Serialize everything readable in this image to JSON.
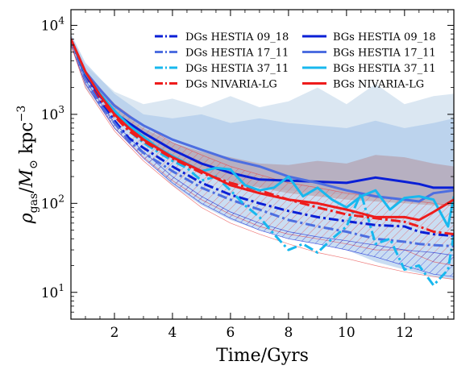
{
  "chart_data": {
    "type": "line",
    "xlabel": "Time/Gyrs",
    "ylabel": "ρ_gas/M_⊙ kpc^−3",
    "yscale": "log",
    "xlim": [
      0.5,
      13.7
    ],
    "ylim": [
      5,
      15000
    ],
    "xticks": [
      2,
      4,
      6,
      8,
      10,
      12
    ],
    "xtick_labels": [
      "2",
      "4",
      "6",
      "8",
      "10",
      "12"
    ],
    "yticks": [
      10,
      100,
      1000,
      10000
    ],
    "ytick_labels": [
      {
        "base": "10",
        "exp": "1"
      },
      {
        "base": "10",
        "exp": "2"
      },
      {
        "base": "10",
        "exp": "3"
      },
      {
        "base": "10",
        "exp": "4"
      }
    ],
    "legend_position": "top-right",
    "colors": {
      "hestia_09_18": "#0a1fd6",
      "hestia_17_11": "#4d6ee0",
      "hestia_37_11": "#18b8ee",
      "nivaria_lg": "#ee1c1c"
    },
    "series": [
      {
        "name": "DGs HESTIA 09_18",
        "color": "#0a1fd6",
        "style": "dashdot",
        "x": [
          0.5,
          1,
          1.5,
          2,
          2.5,
          3,
          4,
          5,
          6,
          7,
          8,
          9,
          10,
          11,
          12,
          12.5,
          13,
          13.7
        ],
        "y": [
          7000,
          2600,
          1400,
          850,
          540,
          420,
          260,
          170,
          125,
          100,
          82,
          70,
          63,
          57,
          55,
          48,
          45,
          43
        ]
      },
      {
        "name": "DGs HESTIA 17_11",
        "color": "#4d6ee0",
        "style": "dashdot",
        "x": [
          0.5,
          1,
          1.5,
          2,
          2.5,
          3,
          4,
          5,
          6,
          7,
          8,
          9,
          10,
          11,
          12,
          12.5,
          13,
          13.7
        ],
        "y": [
          7000,
          2500,
          1300,
          800,
          500,
          370,
          230,
          150,
          110,
          85,
          65,
          55,
          48,
          40,
          37,
          35,
          34,
          33
        ]
      },
      {
        "name": "DGs HESTIA 37_11",
        "color": "#18b8ee",
        "style": "dashdot",
        "x": [
          0.5,
          1,
          1.5,
          2,
          2.5,
          3,
          4,
          4.5,
          5,
          5.5,
          6,
          6.5,
          7,
          7.5,
          8,
          8.5,
          9,
          9.5,
          10,
          10.5,
          11,
          11.5,
          12,
          12.5,
          13,
          13.5,
          13.7
        ],
        "y": [
          7000,
          2800,
          1600,
          1000,
          650,
          480,
          300,
          250,
          180,
          200,
          140,
          95,
          70,
          45,
          30,
          35,
          28,
          40,
          55,
          130,
          35,
          40,
          18,
          20,
          12,
          18,
          45
        ]
      },
      {
        "name": "DGs NIVARIA-LG",
        "color": "#ee1c1c",
        "style": "dashdot",
        "x": [
          0.5,
          1,
          1.5,
          2,
          2.5,
          3,
          4,
          5,
          6,
          7,
          8,
          9,
          10,
          11,
          12,
          12.5,
          13,
          13.7
        ],
        "y": [
          7000,
          2800,
          1500,
          950,
          650,
          500,
          320,
          220,
          170,
          140,
          110,
          90,
          75,
          68,
          62,
          55,
          48,
          45
        ]
      },
      {
        "name": "BGs HESTIA 09_18",
        "color": "#0a1fd6",
        "style": "solid",
        "x": [
          0.5,
          1,
          1.5,
          2,
          2.5,
          3,
          4,
          5,
          6,
          7,
          8,
          9,
          10,
          11,
          12,
          12.5,
          13,
          13.7
        ],
        "y": [
          7000,
          2800,
          1600,
          1050,
          800,
          620,
          400,
          280,
          220,
          185,
          180,
          175,
          170,
          195,
          175,
          165,
          150,
          150
        ]
      },
      {
        "name": "BGs HESTIA 17_11",
        "color": "#4d6ee0",
        "style": "solid",
        "x": [
          0.5,
          1,
          1.5,
          2,
          2.5,
          3,
          4,
          5,
          6,
          7,
          8,
          9,
          10,
          11,
          12,
          12.5,
          13,
          13.7
        ],
        "y": [
          7000,
          3000,
          1900,
          1250,
          950,
          750,
          520,
          400,
          310,
          260,
          200,
          170,
          140,
          120,
          110,
          105,
          130,
          140
        ]
      },
      {
        "name": "BGs HESTIA 37_11",
        "color": "#18b8ee",
        "style": "solid",
        "x": [
          0.5,
          1,
          1.5,
          2,
          2.5,
          3,
          3.5,
          4,
          4.5,
          5,
          5.5,
          6,
          6.5,
          7,
          7.5,
          8,
          8.5,
          9,
          9.5,
          10,
          10.5,
          11,
          11.5,
          12,
          12.5,
          13,
          13.5,
          13.7
        ],
        "y": [
          7000,
          2900,
          1700,
          1100,
          750,
          560,
          420,
          340,
          280,
          230,
          250,
          240,
          160,
          140,
          150,
          200,
          120,
          150,
          110,
          90,
          120,
          140,
          85,
          115,
          120,
          110,
          55,
          120
        ]
      },
      {
        "name": "BGs NIVARIA-LG",
        "color": "#ee1c1c",
        "style": "solid",
        "x": [
          0.5,
          1,
          1.5,
          2,
          2.5,
          3,
          4,
          5,
          6,
          7,
          8,
          9,
          10,
          11,
          12,
          12.5,
          13,
          13.7
        ],
        "y": [
          7000,
          3000,
          1650,
          1000,
          700,
          520,
          330,
          230,
          160,
          130,
          110,
          100,
          85,
          70,
          70,
          65,
          80,
          110
        ]
      }
    ],
    "bands": [
      {
        "color": "#bed3e8",
        "opacity": 0.55,
        "hatch": false,
        "x": [
          0.5,
          1,
          2,
          3,
          4,
          5,
          6,
          7,
          8,
          9,
          10,
          11,
          12,
          13,
          13.7
        ],
        "lo": [
          6000,
          2200,
          900,
          480,
          300,
          220,
          170,
          150,
          140,
          130,
          125,
          115,
          105,
          100,
          100
        ],
        "hi": [
          8000,
          3500,
          1800,
          1300,
          1500,
          1200,
          1600,
          1200,
          1400,
          2000,
          1300,
          2200,
          1300,
          1600,
          1700
        ]
      },
      {
        "color": "#a6c6ea",
        "opacity": 0.6,
        "hatch": false,
        "x": [
          0.5,
          1,
          2,
          3,
          4,
          5,
          6,
          7,
          8,
          9,
          10,
          11,
          12,
          13,
          13.7
        ],
        "lo": [
          6000,
          2000,
          700,
          330,
          160,
          95,
          65,
          50,
          40,
          35,
          30,
          22,
          18,
          15,
          14
        ],
        "hi": [
          8000,
          3800,
          1700,
          1000,
          900,
          1000,
          800,
          900,
          800,
          750,
          700,
          850,
          700,
          800,
          900
        ]
      },
      {
        "color": "#b07070",
        "opacity": 0.35,
        "hatch": false,
        "x": [
          0.5,
          1,
          2,
          3,
          4,
          5,
          6,
          7,
          8,
          9,
          10,
          11,
          12,
          13,
          13.7
        ],
        "lo": [
          6000,
          2600,
          950,
          520,
          330,
          230,
          175,
          150,
          130,
          120,
          110,
          105,
          100,
          95,
          95
        ],
        "hi": [
          7000,
          3000,
          1200,
          700,
          480,
          380,
          330,
          280,
          270,
          300,
          280,
          350,
          330,
          280,
          260
        ]
      },
      {
        "color": "#e84545",
        "opacity": 1,
        "hatch": true,
        "x": [
          0.5,
          1,
          2,
          3,
          4,
          5,
          6,
          7,
          8,
          9,
          10,
          11,
          12,
          13,
          13.7
        ],
        "lo": [
          6000,
          2200,
          700,
          330,
          180,
          110,
          75,
          55,
          45,
          40,
          35,
          30,
          30,
          22,
          20
        ],
        "hi": [
          7500,
          3000,
          1300,
          750,
          480,
          350,
          260,
          210,
          170,
          150,
          130,
          120,
          110,
          100,
          95
        ]
      },
      {
        "color": "#0a1fd6",
        "opacity": 1,
        "hatch": true,
        "x": [
          0.5,
          1,
          2,
          3,
          4,
          5,
          6,
          7,
          8,
          9,
          10,
          11,
          12,
          13,
          13.7
        ],
        "lo": [
          6000,
          2200,
          700,
          320,
          170,
          100,
          68,
          50,
          40,
          35,
          30,
          25,
          20,
          16,
          15
        ],
        "hi": [
          7000,
          2400,
          800,
          380,
          200,
          120,
          80,
          60,
          48,
          42,
          38,
          34,
          30,
          28,
          26
        ]
      },
      {
        "color": "#e84545",
        "opacity": 1,
        "hatch": false,
        "outline_only": true,
        "x": [
          0.5,
          1,
          2,
          3,
          4,
          5,
          6,
          7,
          8,
          9,
          10,
          11,
          12,
          13,
          13.7
        ],
        "lo": [
          6000,
          2000,
          650,
          300,
          160,
          90,
          60,
          45,
          35,
          28,
          24,
          20,
          17,
          15,
          14
        ],
        "hi": [
          6000,
          2000,
          650,
          300,
          160,
          90,
          60,
          45,
          35,
          28,
          24,
          20,
          17,
          15,
          14
        ]
      }
    ]
  }
}
